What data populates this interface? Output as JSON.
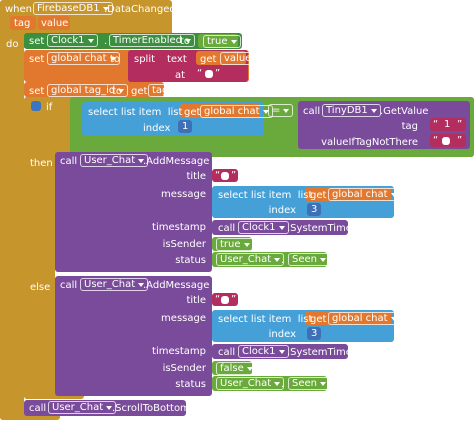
{
  "event": {
    "when": "when",
    "component": "FirebaseDB1",
    "name": ".DataChanged",
    "params": [
      "tag",
      "value"
    ],
    "do": "do"
  },
  "set_timer": {
    "set": "set",
    "component": "Clock1",
    "dot": ".",
    "property": "TimerEnabled",
    "to": "to",
    "value": "true"
  },
  "set_chat": {
    "set": "set",
    "variable": "global chat",
    "to": "to",
    "split": "split",
    "text": "text",
    "get": "get",
    "get_var": "value",
    "at": "at",
    "at_open": "“",
    "at_close": "”"
  },
  "set_tag": {
    "set": "set",
    "variable": "global tag_id",
    "to": "to",
    "get": "get",
    "get_var": "tag"
  },
  "if_block": {
    "if": "if",
    "then": "then",
    "else": "else",
    "condition": {
      "select": "select list item  list",
      "get": "get",
      "get_var": "global chat",
      "index": "index",
      "index_value": 1,
      "op": "=",
      "call": "call",
      "component": "TinyDB1",
      "method": ".GetValue",
      "tag": "tag",
      "tag_open": "“",
      "tag_value": "1",
      "tag_close": "”",
      "default": "valueIfTagNotThere",
      "default_open": "“",
      "default_close": "”"
    },
    "branches": [
      {
        "call": "call",
        "component": "User_Chat",
        "method": ".AddMessage",
        "title": "title",
        "title_open": "“",
        "title_close": "”",
        "message": "message",
        "select": "select list item  list",
        "get": "get",
        "get_var": "global chat",
        "index": "index",
        "index_value": 3,
        "timestamp": "timestamp",
        "ts_call": "call",
        "ts_component": "Clock1",
        "ts_method": ".SystemTime",
        "is_sender": "isSender",
        "sender_value": "true",
        "status": "status",
        "status_component": "User_Chat",
        "status_dot": ".",
        "status_value": "Seen"
      },
      {
        "call": "call",
        "component": "User_Chat",
        "method": ".AddMessage",
        "title": "title",
        "title_open": "“",
        "title_close": "”",
        "message": "message",
        "select": "select list item  list",
        "get": "get",
        "get_var": "global chat",
        "index": "index",
        "index_value": 3,
        "timestamp": "timestamp",
        "ts_call": "call",
        "ts_component": "Clock1",
        "ts_method": ".SystemTime",
        "is_sender": "isSender",
        "sender_value": "false",
        "status": "status",
        "status_component": "User_Chat",
        "status_dot": ".",
        "status_value": "Seen"
      }
    ]
  },
  "scroll": {
    "call": "call",
    "component": "User_Chat",
    "method": ".ScrollToBottom"
  }
}
